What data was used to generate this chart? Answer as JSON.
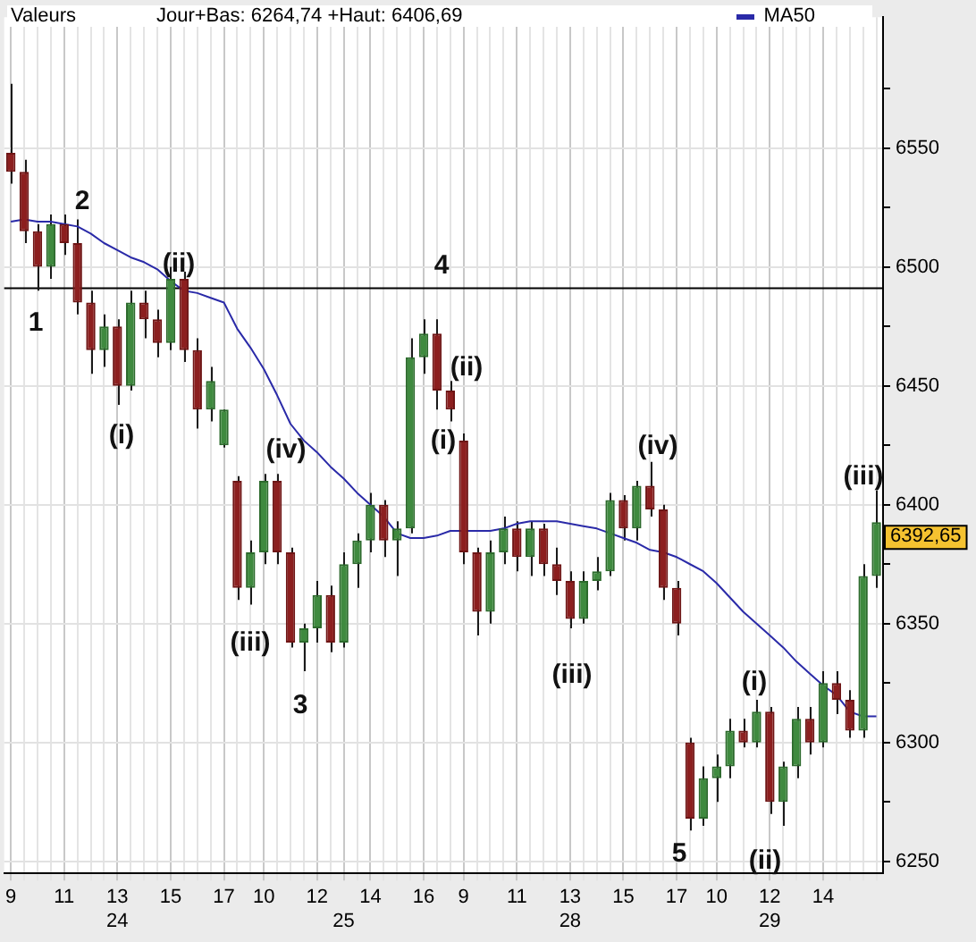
{
  "chart_data": {
    "type": "candlestick",
    "subtitle": "Jour+Bas: 6264,74 +Haut: 6406,69",
    "legend_title": "Valeurs",
    "legend": "top right",
    "grid": true,
    "categories": [
      "9",
      null,
      null,
      null,
      "11",
      null,
      null,
      null,
      "13\n24",
      null,
      null,
      null,
      "15",
      null,
      null,
      null,
      "17",
      null,
      null,
      "10",
      null,
      null,
      null,
      "12",
      null,
      "\n25",
      null,
      "14",
      null,
      null,
      null,
      "16",
      null,
      null,
      "9",
      null,
      null,
      null,
      "11",
      null,
      null,
      null,
      "13\n28",
      null,
      null,
      null,
      "15",
      null,
      null,
      null,
      "17",
      null,
      null,
      "10",
      null,
      null,
      null,
      "12\n29",
      null,
      null,
      null,
      "14",
      null,
      null,
      null,
      null
    ],
    "ohlc": [
      [
        6548,
        6577,
        6535,
        6540
      ],
      [
        6540,
        6545,
        6510,
        6515
      ],
      [
        6515,
        6518,
        6490,
        6500
      ],
      [
        6500,
        6522,
        6495,
        6518
      ],
      [
        6518,
        6522,
        6505,
        6510
      ],
      [
        6510,
        6520,
        6480,
        6485
      ],
      [
        6485,
        6490,
        6455,
        6465
      ],
      [
        6465,
        6480,
        6458,
        6475
      ],
      [
        6475,
        6478,
        6442,
        6450
      ],
      [
        6450,
        6490,
        6448,
        6485
      ],
      [
        6485,
        6490,
        6470,
        6478
      ],
      [
        6478,
        6482,
        6462,
        6468
      ],
      [
        6468,
        6500,
        6465,
        6495
      ],
      [
        6495,
        6498,
        6460,
        6465
      ],
      [
        6465,
        6470,
        6432,
        6440
      ],
      [
        6440,
        6458,
        6435,
        6452
      ],
      [
        6425,
        6440,
        6424,
        6440
      ],
      [
        6410,
        6412,
        6360,
        6365
      ],
      [
        6365,
        6385,
        6358,
        6380
      ],
      [
        6380,
        6413,
        6375,
        6410
      ],
      [
        6410,
        6413,
        6375,
        6380
      ],
      [
        6380,
        6382,
        6340,
        6342
      ],
      [
        6342,
        6350,
        6330,
        6348
      ],
      [
        6348,
        6368,
        6342,
        6362
      ],
      [
        6362,
        6366,
        6338,
        6342
      ],
      [
        6342,
        6380,
        6340,
        6375
      ],
      [
        6375,
        6388,
        6365,
        6385
      ],
      [
        6385,
        6405,
        6380,
        6400
      ],
      [
        6400,
        6402,
        6378,
        6385
      ],
      [
        6385,
        6393,
        6370,
        6390
      ],
      [
        6390,
        6470,
        6388,
        6462
      ],
      [
        6462,
        6478,
        6455,
        6472
      ],
      [
        6472,
        6478,
        6440,
        6448
      ],
      [
        6448,
        6452,
        6435,
        6440
      ],
      [
        6427,
        6430,
        6375,
        6380
      ],
      [
        6380,
        6382,
        6345,
        6355
      ],
      [
        6355,
        6385,
        6350,
        6380
      ],
      [
        6380,
        6395,
        6375,
        6390
      ],
      [
        6390,
        6393,
        6372,
        6378
      ],
      [
        6378,
        6393,
        6370,
        6390
      ],
      [
        6390,
        6392,
        6370,
        6375
      ],
      [
        6375,
        6382,
        6362,
        6368
      ],
      [
        6368,
        6372,
        6348,
        6352
      ],
      [
        6352,
        6372,
        6350,
        6368
      ],
      [
        6368,
        6378,
        6364,
        6372
      ],
      [
        6372,
        6405,
        6370,
        6402
      ],
      [
        6402,
        6404,
        6385,
        6390
      ],
      [
        6390,
        6410,
        6385,
        6408
      ],
      [
        6408,
        6418,
        6395,
        6398
      ],
      [
        6398,
        6400,
        6360,
        6365
      ],
      [
        6365,
        6368,
        6345,
        6350
      ],
      [
        6300,
        6302,
        6263,
        6268
      ],
      [
        6268,
        6290,
        6265,
        6285
      ],
      [
        6285,
        6295,
        6275,
        6290
      ],
      [
        6290,
        6310,
        6285,
        6305
      ],
      [
        6305,
        6310,
        6298,
        6300
      ],
      [
        6300,
        6318,
        6298,
        6313
      ],
      [
        6313,
        6315,
        6270,
        6275
      ],
      [
        6275,
        6292,
        6265,
        6290
      ],
      [
        6290,
        6315,
        6285,
        6310
      ],
      [
        6310,
        6315,
        6295,
        6300
      ],
      [
        6300,
        6330,
        6298,
        6325
      ],
      [
        6325,
        6330,
        6312,
        6318
      ],
      [
        6318,
        6322,
        6302,
        6305
      ],
      [
        6305,
        6375,
        6302,
        6370
      ],
      [
        6370,
        6406,
        6365,
        6392.65
      ]
    ],
    "series": [
      {
        "name": "MA50",
        "type": "line",
        "color": "#2a2aa8",
        "values": [
          6519,
          6520,
          6519,
          6519,
          6518,
          6517,
          6514,
          6510,
          6507,
          6504,
          6502,
          6499,
          6494,
          6490,
          6489,
          6487,
          6485,
          6474,
          6466,
          6457,
          6446,
          6434,
          6427,
          6422,
          6416,
          6411,
          6405,
          6400,
          6395,
          6388,
          6386,
          6386,
          6387,
          6389,
          6389,
          6389,
          6389,
          6390,
          6392,
          6393,
          6393,
          6393,
          6392,
          6391,
          6390,
          6388,
          6386,
          6384,
          6381,
          6380,
          6378,
          6375,
          6372,
          6367,
          6361,
          6355,
          6350,
          6345,
          6340,
          6334,
          6329,
          6324,
          6320,
          6313,
          6311,
          6311
        ]
      }
    ],
    "ylim": [
      6245,
      6605
    ],
    "yticks": [
      6250,
      {
        "value": 6275,
        "label": null
      },
      6300,
      {
        "value": 6325,
        "label": null
      },
      6350,
      {
        "value": 6375,
        "label": null
      },
      6400,
      {
        "value": 6425,
        "label": null
      },
      6450,
      {
        "value": 6475,
        "label": null
      },
      6500,
      {
        "value": 6525,
        "label": null
      },
      6550,
      {
        "value": 6575,
        "label": null
      }
    ],
    "ref_lines": [
      {
        "axis": "y",
        "value": 6491,
        "color": "#000000"
      }
    ],
    "annotations": [
      "1",
      "2",
      "(i)",
      "(ii)",
      "(iii)",
      "(iv)",
      "3",
      "(i)",
      "(ii)",
      "4",
      "(iii)",
      "(iv)",
      "5",
      "(i)",
      "(ii)",
      "(iii)",
      "6392,65"
    ]
  }
}
